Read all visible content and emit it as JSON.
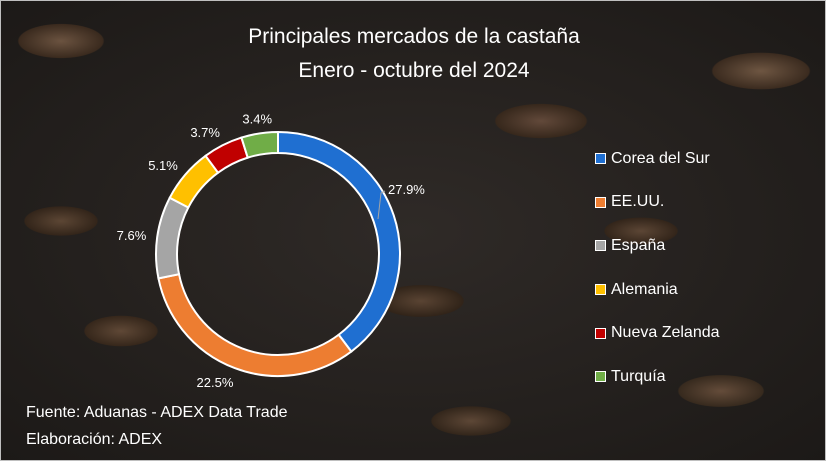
{
  "chart_data": {
    "type": "pie",
    "variant": "doughnut",
    "title": "Principales mercados de la castaña",
    "subtitle": "Enero - octubre del 2024",
    "legend_position": "right",
    "slices": [
      {
        "name": "Corea del Sur",
        "value": 27.9,
        "label": "27.9%",
        "color": "#1f6fd1"
      },
      {
        "name": "EE.UU.",
        "value": 22.5,
        "label": "22.5%",
        "color": "#ed7d31"
      },
      {
        "name": "España",
        "value": 7.6,
        "label": "7.6%",
        "color": "#a5a5a5"
      },
      {
        "name": "Alemania",
        "value": 5.1,
        "label": "5.1%",
        "color": "#ffc000"
      },
      {
        "name": "Nueva Zelanda",
        "value": 3.7,
        "label": "3.7%",
        "color": "#c00000"
      },
      {
        "name": "Turquía",
        "value": 3.4,
        "label": "3.4%",
        "color": "#70ad47"
      }
    ]
  },
  "footer": {
    "source": "Fuente: Aduanas - ADEX Data Trade",
    "credit": "Elaboración: ADEX"
  }
}
